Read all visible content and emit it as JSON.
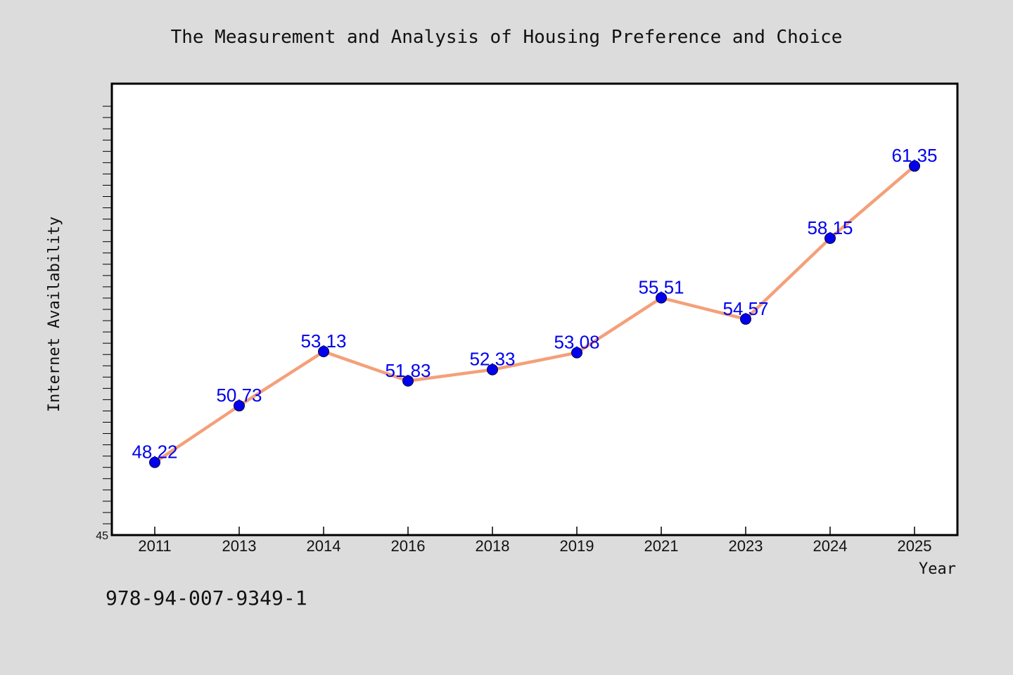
{
  "chart_data": {
    "type": "line",
    "title": "The Measurement and Analysis of Housing Preference and Choice",
    "xlabel": "Year",
    "ylabel": "Internet Availability",
    "categories": [
      "2011",
      "2013",
      "2014",
      "2016",
      "2018",
      "2019",
      "2021",
      "2023",
      "2024",
      "2025"
    ],
    "series": [
      {
        "values": [
          48.22,
          50.73,
          53.13,
          51.83,
          52.33,
          53.08,
          55.51,
          54.57,
          58.15,
          61.35
        ]
      }
    ],
    "data_labels": [
      "48.22",
      "50.73",
      "53.13",
      "51.83",
      "52.33",
      "53.08",
      "55.51",
      "54.57",
      "58.15",
      "61.35"
    ],
    "ylim": [
      45,
      65
    ],
    "ytick_labels": [
      "45"
    ],
    "grid": false,
    "line_color": "#f4a07a",
    "marker_color": "#0000ee",
    "label_color": "#0000ee"
  },
  "footer": {
    "isbn": "978-94-007-9349-1"
  }
}
